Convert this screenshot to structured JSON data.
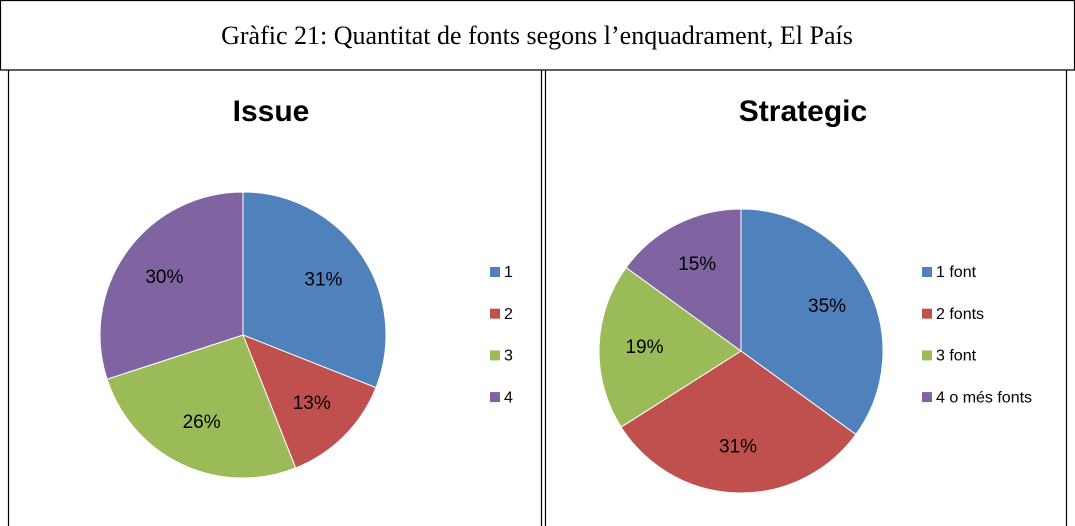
{
  "caption": "Gràfic 21: Quantitat de fonts segons l’enquadrament, El País",
  "chart_data": [
    {
      "type": "pie",
      "title": "Issue",
      "categories": [
        "1",
        "2",
        "3",
        "4"
      ],
      "values": [
        31,
        13,
        26,
        30
      ],
      "value_labels": [
        "31%",
        "13%",
        "26%",
        "30%"
      ],
      "colors": [
        "#4f81bd",
        "#c0504d",
        "#9bbb59",
        "#8064a2"
      ],
      "legend": "right"
    },
    {
      "type": "pie",
      "title": "Strategic",
      "categories": [
        "1 font",
        "2 fonts",
        "3 font",
        "4 o més fonts"
      ],
      "values": [
        35,
        31,
        19,
        15
      ],
      "value_labels": [
        "35%",
        "31%",
        "19%",
        "15%"
      ],
      "colors": [
        "#4f81bd",
        "#c0504d",
        "#9bbb59",
        "#8064a2"
      ],
      "legend": "right"
    }
  ]
}
